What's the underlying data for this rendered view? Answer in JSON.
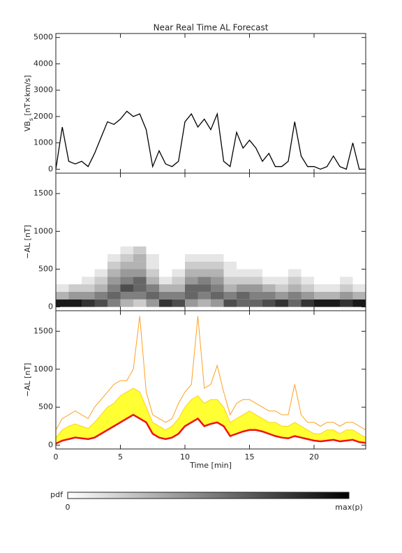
{
  "title": "Near Real Time AL Forecast",
  "chart_data": [
    {
      "type": "line",
      "ylabel": [
        "VB",
        "s",
        " [nT×km/s]"
      ],
      "xlim": [
        0,
        24
      ],
      "xticks": [
        0,
        5,
        10,
        15,
        20
      ],
      "show_xtick_labels": false,
      "ylim": [
        -150,
        5150
      ],
      "yticks": [
        0,
        1000,
        2000,
        3000,
        4000,
        5000
      ],
      "x": [
        0,
        0.5,
        1,
        1.5,
        2,
        2.5,
        3,
        3.5,
        4,
        4.5,
        5,
        5.5,
        6,
        6.5,
        7,
        7.5,
        8,
        8.5,
        9,
        9.5,
        10,
        10.5,
        11,
        11.5,
        12,
        12.5,
        13,
        13.5,
        14,
        14.5,
        15,
        15.5,
        16,
        16.5,
        17,
        17.5,
        18,
        18.5,
        19,
        19.5,
        20,
        20.5,
        21,
        21.5,
        22,
        22.5,
        23,
        23.5,
        24
      ],
      "series": [
        {
          "color": "#000000",
          "width": 1.3,
          "values": [
            0,
            1600,
            300,
            200,
            300,
            100,
            600,
            1200,
            1800,
            1700,
            1900,
            2200,
            2000,
            2100,
            1500,
            100,
            700,
            200,
            100,
            300,
            1800,
            2100,
            1600,
            1900,
            1500,
            2100,
            300,
            100,
            1400,
            800,
            1100,
            800,
            300,
            600,
            100,
            100,
            300,
            1800,
            500,
            100,
            100,
            0,
            100,
            500,
            100,
            0,
            1000,
            0,
            0
          ]
        }
      ]
    },
    {
      "type": "heatmap",
      "ylabel": [
        "−AL [nT]"
      ],
      "xlim": [
        0,
        24
      ],
      "xticks": [
        0,
        5,
        10,
        15,
        20
      ],
      "show_xtick_labels": false,
      "ylim": [
        -50,
        1770
      ],
      "yticks": [
        0,
        500,
        1000,
        1500
      ],
      "xbins": [
        0,
        1,
        2,
        3,
        4,
        5,
        6,
        7,
        8,
        9,
        10,
        11,
        12,
        13,
        14,
        15,
        16,
        17,
        18,
        19,
        20,
        21,
        22,
        23,
        24
      ],
      "ybins": [
        0,
        100,
        200,
        300,
        400,
        500,
        600,
        700,
        800
      ],
      "z": [
        [
          0.9,
          0.3,
          0.1,
          0,
          0,
          0,
          0,
          0
        ],
        [
          0.9,
          0.4,
          0.2,
          0,
          0,
          0,
          0,
          0
        ],
        [
          0.8,
          0.4,
          0.2,
          0.1,
          0,
          0,
          0,
          0
        ],
        [
          0.7,
          0.5,
          0.3,
          0.2,
          0.1,
          0,
          0,
          0
        ],
        [
          0.5,
          0.6,
          0.5,
          0.4,
          0.3,
          0.2,
          0.1,
          0
        ],
        [
          0.3,
          0.5,
          0.7,
          0.5,
          0.4,
          0.3,
          0.2,
          0.1
        ],
        [
          0.2,
          0.5,
          0.6,
          0.6,
          0.4,
          0.3,
          0.3,
          0.2
        ],
        [
          0.4,
          0.6,
          0.5,
          0.3,
          0.2,
          0.1,
          0.1,
          0
        ],
        [
          0.8,
          0.5,
          0.3,
          0.1,
          0,
          0,
          0,
          0
        ],
        [
          0.7,
          0.5,
          0.3,
          0.2,
          0.1,
          0,
          0,
          0
        ],
        [
          0.4,
          0.6,
          0.6,
          0.4,
          0.3,
          0.2,
          0.1,
          0
        ],
        [
          0.3,
          0.5,
          0.6,
          0.5,
          0.3,
          0.2,
          0.1,
          0
        ],
        [
          0.4,
          0.6,
          0.5,
          0.4,
          0.3,
          0.2,
          0.1,
          0
        ],
        [
          0.7,
          0.5,
          0.3,
          0.2,
          0.1,
          0.1,
          0,
          0
        ],
        [
          0.6,
          0.6,
          0.4,
          0.2,
          0.1,
          0,
          0,
          0
        ],
        [
          0.6,
          0.5,
          0.4,
          0.2,
          0.1,
          0,
          0,
          0
        ],
        [
          0.7,
          0.5,
          0.3,
          0.1,
          0,
          0,
          0,
          0
        ],
        [
          0.8,
          0.4,
          0.2,
          0.1,
          0,
          0,
          0,
          0
        ],
        [
          0.6,
          0.5,
          0.3,
          0.2,
          0.1,
          0,
          0,
          0
        ],
        [
          0.8,
          0.4,
          0.2,
          0.1,
          0,
          0,
          0,
          0
        ],
        [
          0.9,
          0.3,
          0.1,
          0,
          0,
          0,
          0,
          0
        ],
        [
          0.9,
          0.3,
          0.1,
          0,
          0,
          0,
          0,
          0
        ],
        [
          0.8,
          0.4,
          0.2,
          0.1,
          0,
          0,
          0,
          0
        ],
        [
          0.9,
          0.3,
          0.1,
          0,
          0,
          0,
          0,
          0
        ]
      ],
      "colorbar": {
        "label": "pdf",
        "min_label": "0",
        "max_label": "max(p)"
      }
    },
    {
      "type": "band",
      "ylabel": [
        "−AL [nT]"
      ],
      "xlabel": "Time [min]",
      "xlim": [
        0,
        24
      ],
      "xticks": [
        0,
        5,
        10,
        15,
        20
      ],
      "show_xtick_labels": true,
      "ylim": [
        -50,
        1770
      ],
      "yticks": [
        0,
        500,
        1000,
        1500
      ],
      "x": [
        0,
        0.5,
        1,
        1.5,
        2,
        2.5,
        3,
        3.5,
        4,
        4.5,
        5,
        5.5,
        6,
        6.5,
        7,
        7.5,
        8,
        8.5,
        9,
        9.5,
        10,
        10.5,
        11,
        11.5,
        12,
        12.5,
        13,
        13.5,
        14,
        14.5,
        15,
        15.5,
        16,
        16.5,
        17,
        17.5,
        18,
        18.5,
        19,
        19.5,
        20,
        20.5,
        21,
        21.5,
        22,
        22.5,
        23,
        23.5,
        24
      ],
      "band_color": "#ffff33",
      "series": [
        {
          "color": "#ffa020",
          "width": 1,
          "values": [
            200,
            350,
            400,
            450,
            400,
            350,
            500,
            600,
            700,
            800,
            850,
            850,
            1000,
            1700,
            700,
            400,
            350,
            300,
            350,
            550,
            700,
            800,
            1700,
            750,
            800,
            1050,
            700,
            400,
            550,
            600,
            600,
            550,
            500,
            450,
            450,
            400,
            400,
            800,
            400,
            300,
            300,
            250,
            300,
            300,
            250,
            300,
            300,
            250,
            200
          ]
        },
        {
          "color": "#ffd020",
          "width": 1,
          "values": [
            100,
            200,
            250,
            280,
            250,
            220,
            300,
            400,
            500,
            550,
            650,
            700,
            750,
            700,
            500,
            300,
            250,
            200,
            250,
            350,
            500,
            600,
            650,
            550,
            600,
            600,
            500,
            300,
            350,
            400,
            450,
            400,
            350,
            300,
            300,
            250,
            250,
            300,
            250,
            200,
            150,
            150,
            200,
            200,
            150,
            200,
            200,
            150,
            100
          ]
        },
        {
          "color": "#ee1111",
          "width": 2.5,
          "values": [
            20,
            60,
            80,
            100,
            90,
            80,
            100,
            150,
            200,
            250,
            300,
            350,
            400,
            350,
            300,
            150,
            100,
            80,
            100,
            150,
            250,
            300,
            350,
            250,
            280,
            300,
            250,
            120,
            150,
            180,
            200,
            200,
            180,
            150,
            120,
            100,
            90,
            120,
            100,
            80,
            60,
            50,
            60,
            70,
            50,
            60,
            70,
            40,
            30
          ]
        }
      ]
    }
  ]
}
